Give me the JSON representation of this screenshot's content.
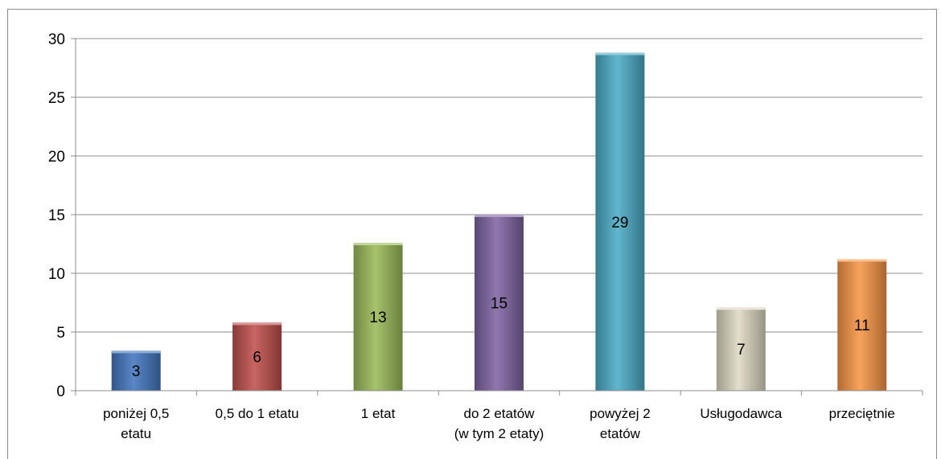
{
  "chart_data": {
    "type": "bar",
    "title": "",
    "xlabel": "",
    "ylabel": "",
    "ylim": [
      0,
      30
    ],
    "y_ticks": [
      "0",
      "5",
      "10",
      "15",
      "20",
      "25",
      "30"
    ],
    "grid": true,
    "legend": "none",
    "categories": [
      [
        "poniżej 0,5",
        "etatu"
      ],
      [
        "0,5 do 1 etatu"
      ],
      [
        "1 etat"
      ],
      [
        "do 2 etatów",
        "(w tym 2 etaty)"
      ],
      [
        "powyżej 2",
        "etatów"
      ],
      [
        "Usługodawca"
      ],
      [
        "przeciętnie"
      ]
    ],
    "values": [
      3.4,
      5.8,
      12.6,
      15,
      28.8,
      7.1,
      11.2
    ],
    "data_labels": [
      "3",
      "6",
      "13",
      "15",
      "29",
      "7",
      "11"
    ],
    "colors": [
      "#4477c0",
      "#c0504d",
      "#9bbb59",
      "#8064a2",
      "#4bacc6",
      "#ddd9c3",
      "#f79646"
    ]
  }
}
